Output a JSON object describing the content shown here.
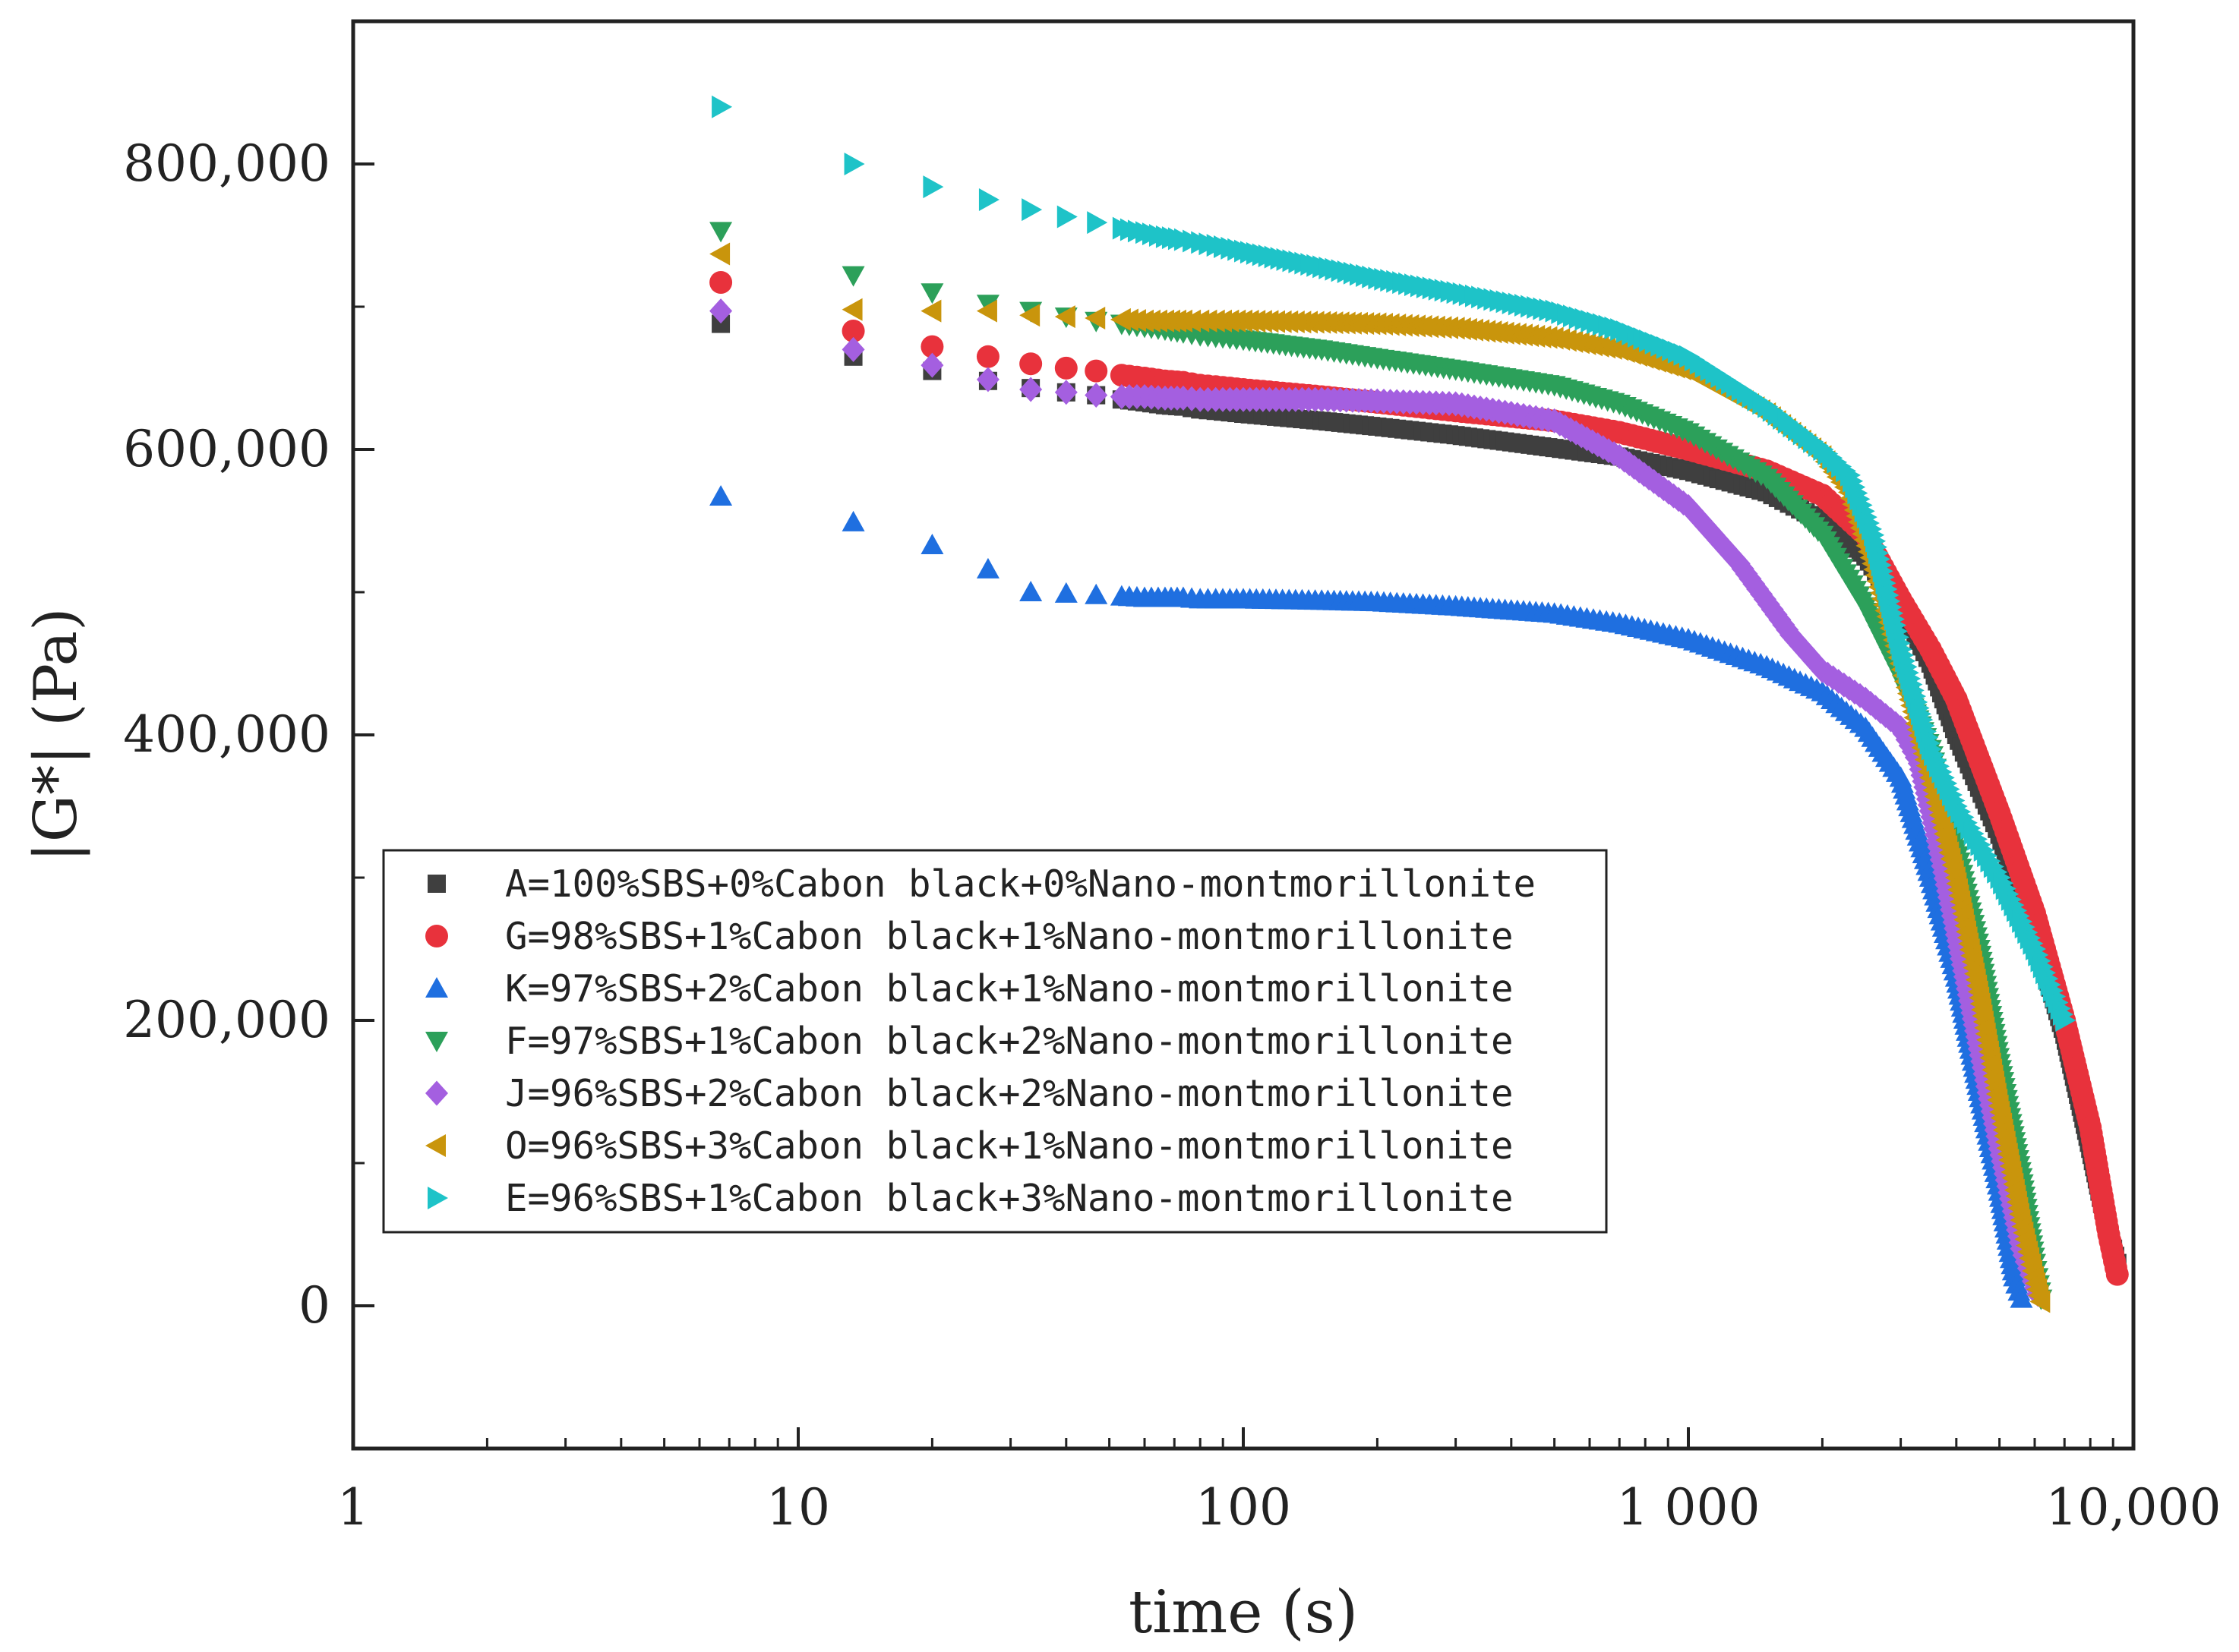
{
  "chart_data": {
    "type": "scatter",
    "title": "",
    "xlabel": "time (s)",
    "ylabel": "|G*| (Pa)",
    "xscale": "log",
    "xlim": [
      1,
      10000
    ],
    "ylim": [
      -100000,
      900000
    ],
    "x_ticks": [
      {
        "value": 1,
        "label": "1"
      },
      {
        "value": 10,
        "label": "10"
      },
      {
        "value": 100,
        "label": "100"
      },
      {
        "value": 1000,
        "label": "1 000"
      },
      {
        "value": 10000,
        "label": "10,000"
      }
    ],
    "y_ticks": [
      {
        "value": 0,
        "label": "0"
      },
      {
        "value": 200000,
        "label": "200,000"
      },
      {
        "value": 400000,
        "label": "400,000"
      },
      {
        "value": 600000,
        "label": "600,000"
      },
      {
        "value": 800000,
        "label": "800,000"
      }
    ],
    "legend_position": "bottom-left",
    "series": [
      {
        "id": "A",
        "name": "A=100%SBS+0%Cabon black+0%Nano-montmorillonite",
        "marker": "square",
        "color": "#3f3f3f",
        "points": [
          [
            6.7,
            688000
          ],
          [
            13.3,
            665000
          ],
          [
            20,
            655000
          ],
          [
            26.7,
            648000
          ],
          [
            33.3,
            643000
          ],
          [
            40,
            640000
          ],
          [
            46.7,
            638000
          ],
          [
            53.3,
            635000
          ],
          [
            60,
            633000
          ],
          [
            66.7,
            631000
          ],
          [
            73.3,
            630000
          ],
          [
            80,
            628000
          ],
          [
            86.7,
            627000
          ],
          [
            93.3,
            626000
          ],
          [
            100,
            625000
          ],
          [
            150,
            620000
          ],
          [
            200,
            616000
          ],
          [
            300,
            610000
          ],
          [
            400,
            605000
          ],
          [
            500,
            601000
          ],
          [
            700,
            595000
          ],
          [
            1000,
            585000
          ],
          [
            1500,
            570000
          ],
          [
            2000,
            550000
          ],
          [
            2500,
            525000
          ],
          [
            3000,
            490000
          ],
          [
            3500,
            450000
          ],
          [
            4000,
            400000
          ],
          [
            5000,
            330000
          ],
          [
            6000,
            260000
          ],
          [
            7000,
            190000
          ],
          [
            8000,
            110000
          ],
          [
            8800,
            50000
          ],
          [
            9200,
            30000
          ]
        ]
      },
      {
        "id": "G",
        "name": "G=98%SBS+1%Cabon black+1%Nano-montmorillonite",
        "marker": "circle",
        "color": "#e8323c",
        "points": [
          [
            6.7,
            717000
          ],
          [
            13.3,
            683000
          ],
          [
            20,
            672000
          ],
          [
            26.7,
            665000
          ],
          [
            33.3,
            660000
          ],
          [
            40,
            657000
          ],
          [
            46.7,
            655000
          ],
          [
            53.3,
            652000
          ],
          [
            60,
            650000
          ],
          [
            66.7,
            648000
          ],
          [
            73.3,
            647000
          ],
          [
            80,
            645000
          ],
          [
            86.7,
            644000
          ],
          [
            93.3,
            643000
          ],
          [
            100,
            642000
          ],
          [
            150,
            637000
          ],
          [
            200,
            633000
          ],
          [
            300,
            627000
          ],
          [
            500,
            620000
          ],
          [
            700,
            612000
          ],
          [
            1000,
            600000
          ],
          [
            1500,
            585000
          ],
          [
            2000,
            568000
          ],
          [
            2500,
            540000
          ],
          [
            3000,
            495000
          ],
          [
            3500,
            460000
          ],
          [
            4000,
            425000
          ],
          [
            5000,
            345000
          ],
          [
            6000,
            275000
          ],
          [
            7000,
            200000
          ],
          [
            8000,
            125000
          ],
          [
            8800,
            50000
          ],
          [
            9200,
            22000
          ]
        ]
      },
      {
        "id": "K",
        "name": "K=97%SBS+2%Cabon black+1%Nano-montmorillonite",
        "marker": "triangle-up",
        "color": "#1f6fe0",
        "points": [
          [
            6.7,
            567000
          ],
          [
            13.3,
            549000
          ],
          [
            20,
            533000
          ],
          [
            26.7,
            516000
          ],
          [
            33.3,
            500000
          ],
          [
            40,
            499000
          ],
          [
            46.7,
            498000
          ],
          [
            53.3,
            497000
          ],
          [
            60,
            496000
          ],
          [
            66.7,
            496000
          ],
          [
            73.3,
            496000
          ],
          [
            80,
            495000
          ],
          [
            86.7,
            495000
          ],
          [
            93.3,
            495000
          ],
          [
            100,
            495000
          ],
          [
            150,
            494000
          ],
          [
            200,
            493000
          ],
          [
            300,
            490000
          ],
          [
            500,
            485000
          ],
          [
            700,
            478000
          ],
          [
            1000,
            467000
          ],
          [
            1500,
            448000
          ],
          [
            2000,
            430000
          ],
          [
            2500,
            405000
          ],
          [
            3000,
            370000
          ],
          [
            3500,
            300000
          ],
          [
            4000,
            230000
          ],
          [
            4500,
            150000
          ],
          [
            5000,
            80000
          ],
          [
            5400,
            20000
          ],
          [
            5600,
            5000
          ]
        ]
      },
      {
        "id": "F",
        "name": "F=97%SBS+1%Cabon black+2%Nano-montmorillonite",
        "marker": "triangle-down",
        "color": "#2ca05a",
        "points": [
          [
            6.7,
            753000
          ],
          [
            13.3,
            722000
          ],
          [
            20,
            710000
          ],
          [
            26.7,
            702000
          ],
          [
            33.3,
            697000
          ],
          [
            40,
            693000
          ],
          [
            46.7,
            690000
          ],
          [
            53.3,
            688000
          ],
          [
            60,
            686000
          ],
          [
            66.7,
            684000
          ],
          [
            73.3,
            682000
          ],
          [
            80,
            680000
          ],
          [
            86.7,
            679000
          ],
          [
            93.3,
            678000
          ],
          [
            100,
            677000
          ],
          [
            150,
            670000
          ],
          [
            200,
            664000
          ],
          [
            300,
            656000
          ],
          [
            500,
            645000
          ],
          [
            700,
            632000
          ],
          [
            1000,
            612000
          ],
          [
            1500,
            580000
          ],
          [
            2000,
            540000
          ],
          [
            2500,
            490000
          ],
          [
            3000,
            440000
          ],
          [
            3500,
            390000
          ],
          [
            4000,
            320000
          ],
          [
            4500,
            250000
          ],
          [
            5000,
            170000
          ],
          [
            5600,
            90000
          ],
          [
            6000,
            30000
          ],
          [
            6200,
            5000
          ]
        ]
      },
      {
        "id": "J",
        "name": "J=96%SBS+2%Cabon black+2%Nano-montmorillonite",
        "marker": "diamond",
        "color": "#a45fe0",
        "points": [
          [
            6.7,
            697000
          ],
          [
            13.3,
            670000
          ],
          [
            20,
            659000
          ],
          [
            26.7,
            649000
          ],
          [
            33.3,
            642000
          ],
          [
            40,
            640000
          ],
          [
            46.7,
            638000
          ],
          [
            53.3,
            637000
          ],
          [
            60,
            637000
          ],
          [
            66.7,
            636000
          ],
          [
            73.3,
            636000
          ],
          [
            80,
            635000
          ],
          [
            86.7,
            635000
          ],
          [
            93.3,
            635000
          ],
          [
            100,
            635000
          ],
          [
            150,
            635000
          ],
          [
            200,
            634000
          ],
          [
            300,
            632000
          ],
          [
            500,
            620000
          ],
          [
            700,
            595000
          ],
          [
            1000,
            560000
          ],
          [
            1300,
            520000
          ],
          [
            1700,
            470000
          ],
          [
            2000,
            445000
          ],
          [
            2500,
            425000
          ],
          [
            3000,
            405000
          ],
          [
            3300,
            380000
          ],
          [
            3600,
            330000
          ],
          [
            4000,
            260000
          ],
          [
            4500,
            180000
          ],
          [
            5000,
            110000
          ],
          [
            5600,
            40000
          ],
          [
            6100,
            8000
          ]
        ]
      },
      {
        "id": "O",
        "name": "O=96%SBS+3%Cabon black+1%Nano-montmorillonite",
        "marker": "triangle-left",
        "color": "#c9950c",
        "points": [
          [
            6.7,
            737000
          ],
          [
            13.3,
            698000
          ],
          [
            20,
            697000
          ],
          [
            26.7,
            697000
          ],
          [
            33.3,
            694000
          ],
          [
            40,
            693000
          ],
          [
            46.7,
            692000
          ],
          [
            53.3,
            691000
          ],
          [
            60,
            690000
          ],
          [
            66.7,
            690000
          ],
          [
            73.3,
            690000
          ],
          [
            80,
            690000
          ],
          [
            86.7,
            690000
          ],
          [
            93.3,
            690000
          ],
          [
            100,
            690000
          ],
          [
            150,
            689000
          ],
          [
            200,
            688000
          ],
          [
            300,
            685000
          ],
          [
            500,
            678000
          ],
          [
            700,
            670000
          ],
          [
            1000,
            655000
          ],
          [
            1500,
            625000
          ],
          [
            2000,
            595000
          ],
          [
            2300,
            570000
          ],
          [
            2600,
            520000
          ],
          [
            3000,
            450000
          ],
          [
            3500,
            370000
          ],
          [
            4000,
            300000
          ],
          [
            4500,
            220000
          ],
          [
            5000,
            140000
          ],
          [
            5600,
            60000
          ],
          [
            6000,
            20000
          ],
          [
            6200,
            3000
          ]
        ]
      },
      {
        "id": "E",
        "name": "E=96%SBS+1%Cabon black+3%Nano-montmorillonite",
        "marker": "triangle-right",
        "color": "#1ec3c8",
        "points": [
          [
            6.7,
            840000
          ],
          [
            13.3,
            800000
          ],
          [
            20,
            784000
          ],
          [
            26.7,
            775000
          ],
          [
            33.3,
            768000
          ],
          [
            40,
            763000
          ],
          [
            46.7,
            759000
          ],
          [
            53.3,
            755000
          ],
          [
            60,
            752000
          ],
          [
            66.7,
            749000
          ],
          [
            73.3,
            747000
          ],
          [
            80,
            745000
          ],
          [
            86.7,
            743000
          ],
          [
            93.3,
            741000
          ],
          [
            100,
            739000
          ],
          [
            150,
            728000
          ],
          [
            200,
            720000
          ],
          [
            300,
            710000
          ],
          [
            500,
            697000
          ],
          [
            700,
            684000
          ],
          [
            1000,
            665000
          ],
          [
            1500,
            630000
          ],
          [
            2000,
            600000
          ],
          [
            2300,
            582000
          ],
          [
            2600,
            540000
          ],
          [
            3000,
            460000
          ],
          [
            3500,
            390000
          ],
          [
            4000,
            350000
          ],
          [
            5000,
            300000
          ],
          [
            6000,
            250000
          ],
          [
            7000,
            200000
          ]
        ]
      }
    ]
  }
}
